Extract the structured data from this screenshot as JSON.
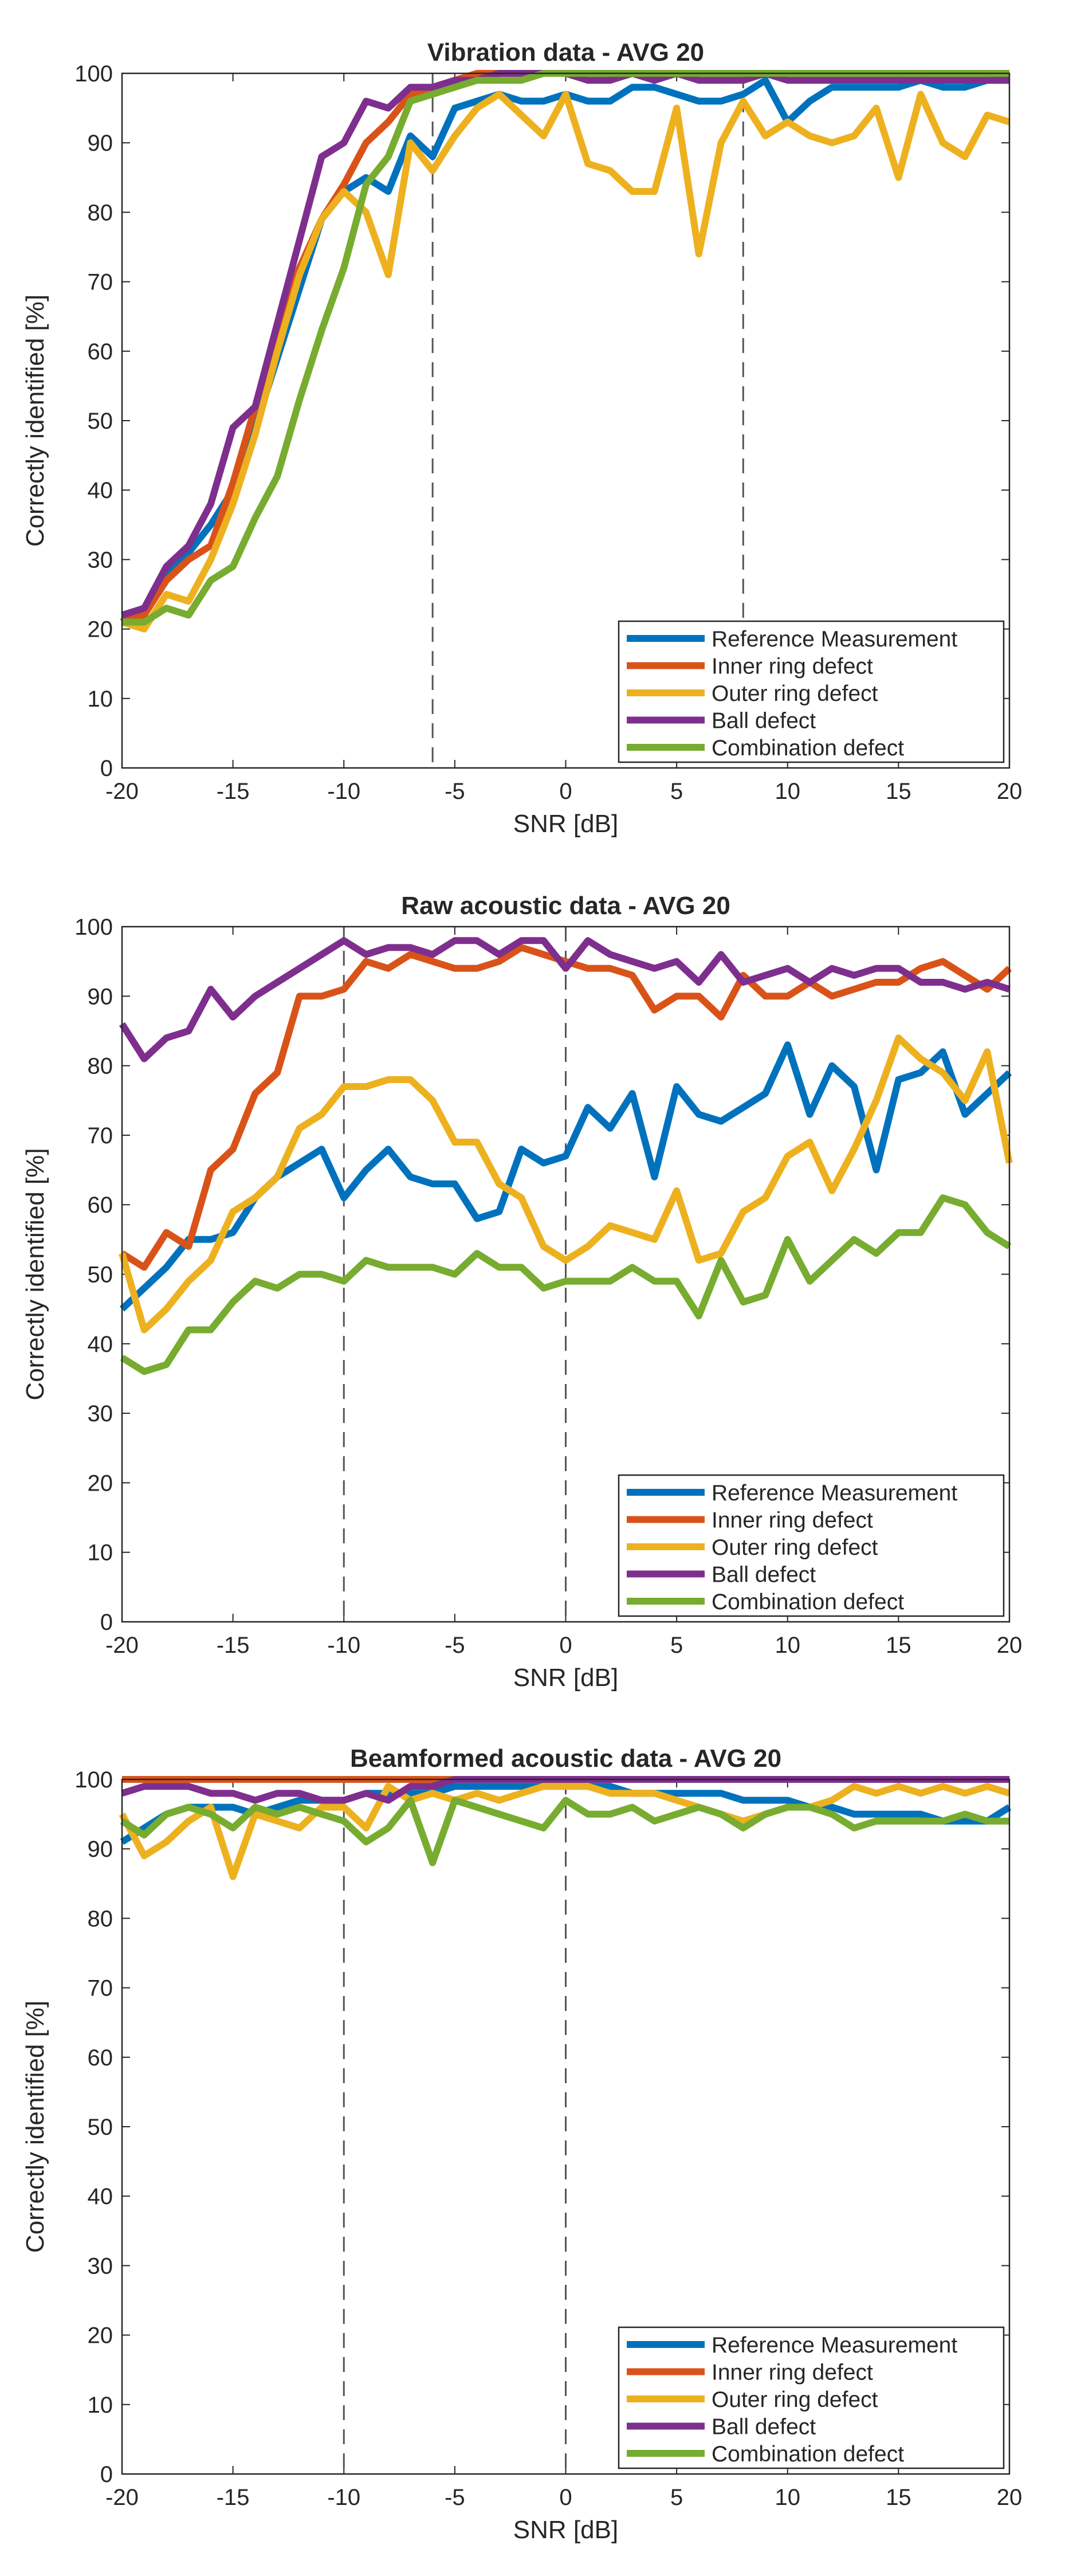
{
  "colors": {
    "reference": "#0072BD",
    "inner": "#D95319",
    "outer": "#EDB120",
    "ball": "#7E2F8E",
    "combination": "#77AC30",
    "axis": "#262626",
    "dashed": "#555555"
  },
  "chart_data": [
    {
      "type": "line",
      "title": "Vibration data - AVG 20",
      "xlabel": "SNR [dB]",
      "ylabel": "Correctly identified [%]",
      "xlim": [
        -20,
        20
      ],
      "ylim": [
        0,
        100
      ],
      "xticks": [
        -20,
        -15,
        -10,
        -5,
        0,
        5,
        10,
        15,
        20
      ],
      "yticks": [
        0,
        10,
        20,
        30,
        40,
        50,
        60,
        70,
        80,
        90,
        100
      ],
      "vlines": [
        -6,
        8
      ],
      "legend_position": "bottom-right",
      "x": [
        -20,
        -19,
        -18,
        -17,
        -16,
        -15,
        -14,
        -13,
        -12,
        -11,
        -10,
        -9,
        -8,
        -7,
        -6,
        -5,
        -4,
        -3,
        -2,
        -1,
        0,
        1,
        2,
        3,
        4,
        5,
        6,
        7,
        8,
        9,
        10,
        11,
        12,
        13,
        14,
        15,
        16,
        17,
        18,
        19,
        20
      ],
      "series": [
        {
          "key": "reference",
          "name": "Reference Measurement",
          "values": [
            21,
            23,
            28,
            31,
            35,
            40,
            49,
            59,
            69,
            79,
            83,
            85,
            83,
            91,
            88,
            95,
            96,
            97,
            96,
            96,
            97,
            96,
            96,
            98,
            98,
            97,
            96,
            96,
            97,
            99,
            93,
            96,
            98,
            98,
            98,
            98,
            99,
            98,
            98,
            99,
            99
          ]
        },
        {
          "key": "inner",
          "name": "Inner ring defect",
          "values": [
            21,
            22,
            27,
            30,
            32,
            41,
            52,
            63,
            72,
            79,
            84,
            90,
            93,
            97,
            98,
            99,
            100,
            100,
            100,
            100,
            100,
            100,
            100,
            100,
            100,
            100,
            100,
            100,
            100,
            100,
            100,
            100,
            100,
            100,
            100,
            100,
            100,
            100,
            100,
            100,
            100
          ]
        },
        {
          "key": "outer",
          "name": "Outer ring defect",
          "values": [
            21,
            20,
            25,
            24,
            30,
            38,
            48,
            60,
            71,
            79,
            83,
            80,
            71,
            90,
            86,
            91,
            95,
            97,
            94,
            91,
            97,
            87,
            86,
            83,
            83,
            95,
            74,
            90,
            96,
            91,
            93,
            91,
            90,
            91,
            95,
            85,
            97,
            90,
            88,
            94,
            93
          ]
        },
        {
          "key": "ball",
          "name": "Ball defect",
          "values": [
            22,
            23,
            29,
            32,
            38,
            49,
            52,
            64,
            76,
            88,
            90,
            96,
            95,
            98,
            98,
            99,
            99,
            100,
            100,
            100,
            100,
            99,
            99,
            100,
            99,
            100,
            99,
            99,
            99,
            100,
            99,
            99,
            99,
            99,
            99,
            99,
            99,
            99,
            99,
            99,
            99
          ]
        },
        {
          "key": "combination",
          "name": "Combination defect",
          "values": [
            21,
            21,
            23,
            22,
            27,
            29,
            36,
            42,
            53,
            63,
            72,
            84,
            88,
            96,
            97,
            98,
            99,
            99,
            99,
            100,
            100,
            100,
            100,
            100,
            100,
            100,
            100,
            100,
            100,
            100,
            100,
            100,
            100,
            100,
            100,
            100,
            100,
            100,
            100,
            100,
            100
          ]
        }
      ]
    },
    {
      "type": "line",
      "title": "Raw acoustic data - AVG 20",
      "xlabel": "SNR [dB]",
      "ylabel": "Correctly identified [%]",
      "xlim": [
        -20,
        20
      ],
      "ylim": [
        0,
        100
      ],
      "xticks": [
        -20,
        -15,
        -10,
        -5,
        0,
        5,
        10,
        15,
        20
      ],
      "yticks": [
        0,
        10,
        20,
        30,
        40,
        50,
        60,
        70,
        80,
        90,
        100
      ],
      "vlines": [
        -10,
        0
      ],
      "legend_position": "bottom-right",
      "x": [
        -20,
        -19,
        -18,
        -17,
        -16,
        -15,
        -14,
        -13,
        -12,
        -11,
        -10,
        -9,
        -8,
        -7,
        -6,
        -5,
        -4,
        -3,
        -2,
        -1,
        0,
        1,
        2,
        3,
        4,
        5,
        6,
        7,
        8,
        9,
        10,
        11,
        12,
        13,
        14,
        15,
        16,
        17,
        18,
        19,
        20
      ],
      "series": [
        {
          "key": "reference",
          "name": "Reference Measurement",
          "values": [
            45,
            48,
            51,
            55,
            55,
            56,
            61,
            64,
            66,
            68,
            61,
            65,
            68,
            64,
            63,
            63,
            58,
            59,
            68,
            66,
            67,
            74,
            71,
            76,
            64,
            77,
            73,
            72,
            74,
            76,
            83,
            73,
            80,
            77,
            65,
            78,
            79,
            82,
            73,
            76,
            79
          ]
        },
        {
          "key": "inner",
          "name": "Inner ring defect",
          "values": [
            53,
            51,
            56,
            54,
            65,
            68,
            76,
            79,
            90,
            90,
            91,
            95,
            94,
            96,
            95,
            94,
            94,
            95,
            97,
            96,
            95,
            94,
            94,
            93,
            88,
            90,
            90,
            87,
            93,
            90,
            90,
            92,
            90,
            91,
            92,
            92,
            94,
            95,
            93,
            91,
            94
          ]
        },
        {
          "key": "outer",
          "name": "Outer ring defect",
          "values": [
            53,
            42,
            45,
            49,
            52,
            59,
            61,
            64,
            71,
            73,
            77,
            77,
            78,
            78,
            75,
            69,
            69,
            63,
            61,
            54,
            52,
            54,
            57,
            56,
            55,
            62,
            52,
            53,
            59,
            61,
            67,
            69,
            62,
            68,
            75,
            84,
            81,
            79,
            75,
            82,
            66
          ]
        },
        {
          "key": "ball",
          "name": "Ball defect",
          "values": [
            86,
            81,
            84,
            85,
            91,
            87,
            90,
            92,
            94,
            96,
            98,
            96,
            97,
            97,
            96,
            98,
            98,
            96,
            98,
            98,
            94,
            98,
            96,
            95,
            94,
            95,
            92,
            96,
            92,
            93,
            94,
            92,
            94,
            93,
            94,
            94,
            92,
            92,
            91,
            92,
            91
          ]
        },
        {
          "key": "combination",
          "name": "Combination defect",
          "values": [
            38,
            36,
            37,
            42,
            42,
            46,
            49,
            48,
            50,
            50,
            49,
            52,
            51,
            51,
            51,
            50,
            53,
            51,
            51,
            48,
            49,
            49,
            49,
            51,
            49,
            49,
            44,
            52,
            46,
            47,
            55,
            49,
            52,
            55,
            53,
            56,
            56,
            61,
            60,
            56,
            54
          ]
        }
      ]
    },
    {
      "type": "line",
      "title": "Beamformed acoustic data - AVG 20",
      "xlabel": "SNR [dB]",
      "ylabel": "Correctly identified [%]",
      "xlim": [
        -20,
        20
      ],
      "ylim": [
        0,
        100
      ],
      "xticks": [
        -20,
        -15,
        -10,
        -5,
        0,
        5,
        10,
        15,
        20
      ],
      "yticks": [
        0,
        10,
        20,
        30,
        40,
        50,
        60,
        70,
        80,
        90,
        100
      ],
      "vlines": [
        -10,
        0
      ],
      "legend_position": "bottom-right",
      "x": [
        -20,
        -19,
        -18,
        -17,
        -16,
        -15,
        -14,
        -13,
        -12,
        -11,
        -10,
        -9,
        -8,
        -7,
        -6,
        -5,
        -4,
        -3,
        -2,
        -1,
        0,
        1,
        2,
        3,
        4,
        5,
        6,
        7,
        8,
        9,
        10,
        11,
        12,
        13,
        14,
        15,
        16,
        17,
        18,
        19,
        20
      ],
      "series": [
        {
          "key": "reference",
          "name": "Reference Measurement",
          "values": [
            91,
            93,
            95,
            96,
            96,
            96,
            95,
            96,
            97,
            97,
            97,
            98,
            98,
            98,
            98,
            99,
            99,
            99,
            99,
            99,
            99,
            99,
            99,
            98,
            98,
            98,
            98,
            98,
            97,
            97,
            97,
            96,
            96,
            95,
            95,
            95,
            95,
            94,
            94,
            94,
            96
          ]
        },
        {
          "key": "inner",
          "name": "Inner ring defect",
          "values": [
            100,
            100,
            100,
            100,
            100,
            100,
            100,
            100,
            100,
            100,
            100,
            100,
            100,
            100,
            100,
            100,
            100,
            100,
            100,
            100,
            100,
            100,
            100,
            100,
            100,
            100,
            100,
            100,
            100,
            100,
            100,
            100,
            100,
            100,
            100,
            100,
            100,
            100,
            100,
            100,
            100
          ]
        },
        {
          "key": "outer",
          "name": "Outer ring defect",
          "values": [
            95,
            89,
            91,
            94,
            96,
            86,
            95,
            94,
            93,
            96,
            96,
            93,
            99,
            97,
            98,
            97,
            98,
            97,
            98,
            99,
            99,
            99,
            98,
            98,
            98,
            97,
            96,
            95,
            94,
            95,
            96,
            96,
            97,
            99,
            98,
            99,
            98,
            99,
            98,
            99,
            98
          ]
        },
        {
          "key": "ball",
          "name": "Ball defect",
          "values": [
            98,
            99,
            99,
            99,
            98,
            98,
            97,
            98,
            98,
            97,
            97,
            98,
            97,
            99,
            99,
            100,
            100,
            100,
            100,
            100,
            100,
            100,
            100,
            100,
            100,
            100,
            100,
            100,
            100,
            100,
            100,
            100,
            100,
            100,
            100,
            100,
            100,
            100,
            100,
            100,
            100
          ]
        },
        {
          "key": "combination",
          "name": "Combination defect",
          "values": [
            94,
            92,
            95,
            96,
            95,
            93,
            96,
            95,
            96,
            95,
            94,
            91,
            93,
            97,
            88,
            97,
            96,
            95,
            94,
            93,
            97,
            95,
            95,
            96,
            94,
            95,
            96,
            95,
            93,
            95,
            96,
            96,
            95,
            93,
            94,
            94,
            94,
            94,
            95,
            94,
            94
          ]
        }
      ]
    }
  ]
}
